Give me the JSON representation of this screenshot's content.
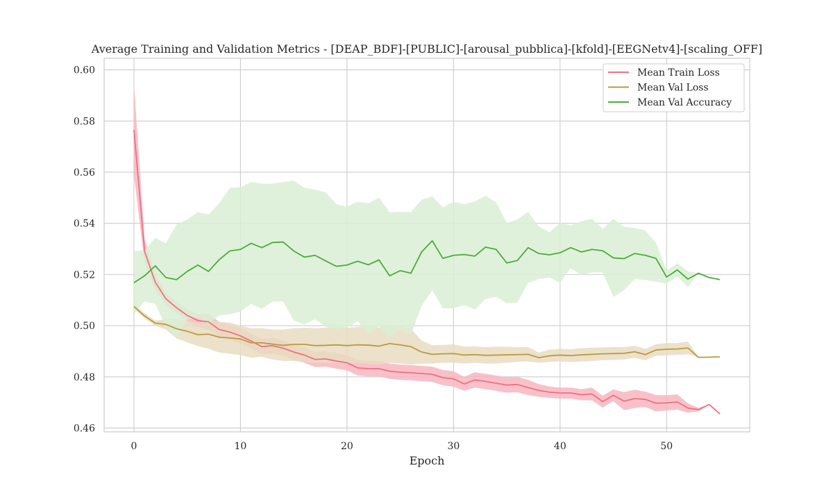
{
  "chart_data": {
    "type": "line",
    "title": "Average Training and Validation Metrics - [DEAP_BDF]-[PUBLIC]-[arousal_pubblica]-[kfold]-[EEGNetv4]-[scaling_OFF]",
    "xlabel": "Epoch",
    "ylabel": "",
    "xlim": [
      -2.8,
      57.8
    ],
    "ylim": [
      0.4585,
      0.6045
    ],
    "xticks": [
      0,
      10,
      20,
      30,
      40,
      50
    ],
    "xtick_labels": [
      "0",
      "10",
      "20",
      "30",
      "40",
      "50"
    ],
    "yticks": [
      0.46,
      0.48,
      0.5,
      0.52,
      0.54,
      0.56,
      0.58,
      0.6
    ],
    "ytick_labels": [
      "0.46",
      "0.48",
      "0.50",
      "0.52",
      "0.54",
      "0.56",
      "0.58",
      "0.60"
    ],
    "grid": true,
    "legend_position": "top-right",
    "series": [
      {
        "name": "Mean Train Loss",
        "color": "#f0707f",
        "band_color": "#f7b6c1",
        "x": [
          0,
          1,
          2,
          3,
          4,
          5,
          6,
          7,
          8,
          9,
          10,
          11,
          12,
          13,
          14,
          15,
          16,
          17,
          18,
          19,
          20,
          21,
          22,
          23,
          24,
          25,
          26,
          27,
          28,
          29,
          30,
          31,
          32,
          33,
          34,
          35,
          36,
          37,
          38,
          39,
          40,
          41,
          42,
          43,
          44,
          45,
          46,
          47,
          48,
          49,
          50,
          51,
          52,
          53,
          54,
          55
        ],
        "values": [
          0.5765,
          0.529,
          0.517,
          0.5105,
          0.507,
          0.504,
          0.502,
          0.5015,
          0.4985,
          0.4975,
          0.496,
          0.494,
          0.4918,
          0.4922,
          0.4912,
          0.4897,
          0.4885,
          0.4868,
          0.487,
          0.4862,
          0.4855,
          0.4835,
          0.4832,
          0.4832,
          0.4822,
          0.4818,
          0.4816,
          0.4813,
          0.481,
          0.4797,
          0.4792,
          0.4772,
          0.4788,
          0.4782,
          0.4775,
          0.4768,
          0.477,
          0.4758,
          0.4747,
          0.474,
          0.4737,
          0.4737,
          0.473,
          0.4733,
          0.4703,
          0.4728,
          0.4705,
          0.4715,
          0.4712,
          0.4697,
          0.4698,
          0.4702,
          0.4678,
          0.4672,
          0.4692,
          0.4655
        ],
        "lower": [
          0.559,
          0.524,
          0.514,
          0.508,
          0.505,
          0.5015,
          0.4995,
          0.4985,
          0.4955,
          0.4945,
          0.493,
          0.491,
          0.4888,
          0.4892,
          0.4882,
          0.4867,
          0.4855,
          0.4838,
          0.484,
          0.4832,
          0.4825,
          0.4805,
          0.4802,
          0.4802,
          0.4792,
          0.4788,
          0.4786,
          0.4783,
          0.478,
          0.4767,
          0.4762,
          0.4745,
          0.4758,
          0.4752,
          0.4745,
          0.4738,
          0.474,
          0.4728,
          0.4722,
          0.4718,
          0.4715,
          0.4715,
          0.4708,
          0.4708,
          0.468,
          0.4705,
          0.467,
          0.4678,
          0.4682,
          0.4665,
          0.4668,
          0.4672,
          0.466,
          0.4665,
          0.4692,
          0.4655
        ],
        "upper": [
          0.5945,
          0.534,
          0.52,
          0.513,
          0.509,
          0.5065,
          0.5045,
          0.5045,
          0.5015,
          0.5005,
          0.499,
          0.497,
          0.4948,
          0.4952,
          0.4942,
          0.4927,
          0.4915,
          0.4898,
          0.49,
          0.4892,
          0.4885,
          0.4865,
          0.4862,
          0.4862,
          0.4852,
          0.4848,
          0.4846,
          0.4843,
          0.484,
          0.4827,
          0.4822,
          0.48,
          0.4818,
          0.4812,
          0.4805,
          0.4798,
          0.48,
          0.4788,
          0.4772,
          0.4762,
          0.4758,
          0.4758,
          0.4752,
          0.4758,
          0.4726,
          0.4751,
          0.474,
          0.475,
          0.4742,
          0.4729,
          0.4728,
          0.4732,
          0.4696,
          0.4679,
          0.4692,
          0.4655
        ]
      },
      {
        "name": "Mean Val Loss",
        "color": "#bb9a3c",
        "band_color": "#e9dcc2",
        "x": [
          0,
          1,
          2,
          3,
          4,
          5,
          6,
          7,
          8,
          9,
          10,
          11,
          12,
          13,
          14,
          15,
          16,
          17,
          18,
          19,
          20,
          21,
          22,
          23,
          24,
          25,
          26,
          27,
          28,
          29,
          30,
          31,
          32,
          33,
          34,
          35,
          36,
          37,
          38,
          39,
          40,
          41,
          42,
          43,
          44,
          45,
          46,
          47,
          48,
          49,
          50,
          51,
          52,
          53,
          54,
          55
        ],
        "values": [
          0.5075,
          0.5038,
          0.501,
          0.5005,
          0.4988,
          0.4978,
          0.4965,
          0.4967,
          0.4955,
          0.4952,
          0.4948,
          0.4933,
          0.4933,
          0.4928,
          0.4923,
          0.4927,
          0.4927,
          0.4922,
          0.4923,
          0.4925,
          0.4922,
          0.4925,
          0.4924,
          0.492,
          0.493,
          0.4925,
          0.4918,
          0.4897,
          0.4888,
          0.489,
          0.4891,
          0.4885,
          0.4887,
          0.4884,
          0.4885,
          0.4886,
          0.4887,
          0.4888,
          0.4875,
          0.4882,
          0.4885,
          0.4883,
          0.4886,
          0.4888,
          0.489,
          0.4891,
          0.4892,
          0.4898,
          0.4887,
          0.4905,
          0.4908,
          0.4909,
          0.4913,
          0.4876,
          0.4877,
          0.4878
        ],
        "lower": [
          0.5065,
          0.5028,
          0.5,
          0.4985,
          0.495,
          0.4935,
          0.492,
          0.491,
          0.4895,
          0.489,
          0.4885,
          0.4875,
          0.4878,
          0.4868,
          0.4862,
          0.4862,
          0.4858,
          0.4855,
          0.4855,
          0.4855,
          0.4852,
          0.4855,
          0.485,
          0.4848,
          0.4855,
          0.4852,
          0.4848,
          0.4852,
          0.4852,
          0.4855,
          0.4855,
          0.4852,
          0.4855,
          0.4852,
          0.4852,
          0.4855,
          0.4858,
          0.486,
          0.4855,
          0.4858,
          0.486,
          0.4858,
          0.486,
          0.4862,
          0.4865,
          0.4866,
          0.4868,
          0.4874,
          0.4865,
          0.4882,
          0.4884,
          0.4886,
          0.4888,
          0.4876,
          0.4877,
          0.4878
        ],
        "upper": [
          0.5085,
          0.5048,
          0.502,
          0.5025,
          0.5025,
          0.502,
          0.501,
          0.5022,
          0.5015,
          0.5012,
          0.5,
          0.499,
          0.499,
          0.4985,
          0.4985,
          0.499,
          0.4992,
          0.499,
          0.4992,
          0.4995,
          0.4992,
          0.4995,
          0.4998,
          0.4993,
          0.5005,
          0.4998,
          0.4988,
          0.4942,
          0.4924,
          0.4925,
          0.4927,
          0.4918,
          0.4919,
          0.4916,
          0.4918,
          0.4917,
          0.4916,
          0.4916,
          0.4895,
          0.4906,
          0.491,
          0.4908,
          0.4912,
          0.4914,
          0.4915,
          0.4916,
          0.4916,
          0.4922,
          0.4909,
          0.4928,
          0.4932,
          0.4932,
          0.4938,
          0.4876,
          0.4877,
          0.4878
        ]
      },
      {
        "name": "Mean Val Accuracy",
        "color": "#4aac3a",
        "band_color": "#d9eed3",
        "x": [
          0,
          1,
          2,
          3,
          4,
          5,
          6,
          7,
          8,
          9,
          10,
          11,
          12,
          13,
          14,
          15,
          16,
          17,
          18,
          19,
          20,
          21,
          22,
          23,
          24,
          25,
          26,
          27,
          28,
          29,
          30,
          31,
          32,
          33,
          34,
          35,
          36,
          37,
          38,
          39,
          40,
          41,
          42,
          43,
          44,
          45,
          46,
          47,
          48,
          49,
          50,
          51,
          52,
          53,
          54,
          55
        ],
        "values": [
          0.5168,
          0.5195,
          0.5234,
          0.5188,
          0.518,
          0.5212,
          0.5237,
          0.5212,
          0.5258,
          0.5292,
          0.5298,
          0.5322,
          0.5305,
          0.5325,
          0.5327,
          0.5292,
          0.5268,
          0.5275,
          0.5253,
          0.5232,
          0.5237,
          0.5252,
          0.5238,
          0.5257,
          0.5195,
          0.5215,
          0.5205,
          0.5288,
          0.5332,
          0.5263,
          0.5275,
          0.5278,
          0.5272,
          0.5307,
          0.5298,
          0.5245,
          0.5255,
          0.5305,
          0.5282,
          0.5277,
          0.5285,
          0.5305,
          0.5288,
          0.5298,
          0.5293,
          0.5265,
          0.5262,
          0.5282,
          0.5275,
          0.5263,
          0.519,
          0.5218,
          0.5182,
          0.5205,
          0.5188,
          0.518
        ],
        "lower": [
          0.5045,
          0.5095,
          0.5085,
          0.4995,
          0.4955,
          0.5025,
          0.503,
          0.5005,
          0.504,
          0.5045,
          0.5055,
          0.5085,
          0.5065,
          0.5095,
          0.5095,
          0.502,
          0.5005,
          0.5025,
          0.4995,
          0.4985,
          0.4993,
          0.5018,
          0.4968,
          0.4998,
          0.495,
          0.4985,
          0.4965,
          0.5078,
          0.5138,
          0.5068,
          0.5068,
          0.508,
          0.5063,
          0.5105,
          0.5112,
          0.5088,
          0.509,
          0.5168,
          0.5182,
          0.5188,
          0.5168,
          0.5225,
          0.5198,
          0.5208,
          0.5208,
          0.5112,
          0.5138,
          0.5182,
          0.5178,
          0.5172,
          0.5165,
          0.5192,
          0.5152,
          0.5205,
          0.5188,
          0.518
        ],
        "upper": [
          0.5291,
          0.5295,
          0.5343,
          0.5322,
          0.5395,
          0.5415,
          0.5444,
          0.5435,
          0.5478,
          0.5539,
          0.5541,
          0.5562,
          0.5555,
          0.5555,
          0.5561,
          0.5567,
          0.5539,
          0.5532,
          0.5521,
          0.5475,
          0.5465,
          0.5485,
          0.5478,
          0.5501,
          0.5443,
          0.5445,
          0.5444,
          0.5492,
          0.5505,
          0.5462,
          0.5485,
          0.5475,
          0.5485,
          0.5508,
          0.5482,
          0.5402,
          0.5415,
          0.5445,
          0.5388,
          0.5365,
          0.5402,
          0.5392,
          0.5408,
          0.5418,
          0.5378,
          0.5418,
          0.5386,
          0.5382,
          0.5372,
          0.5325,
          0.5215,
          0.5244,
          0.5212,
          0.5205,
          0.5188,
          0.518
        ]
      }
    ]
  }
}
